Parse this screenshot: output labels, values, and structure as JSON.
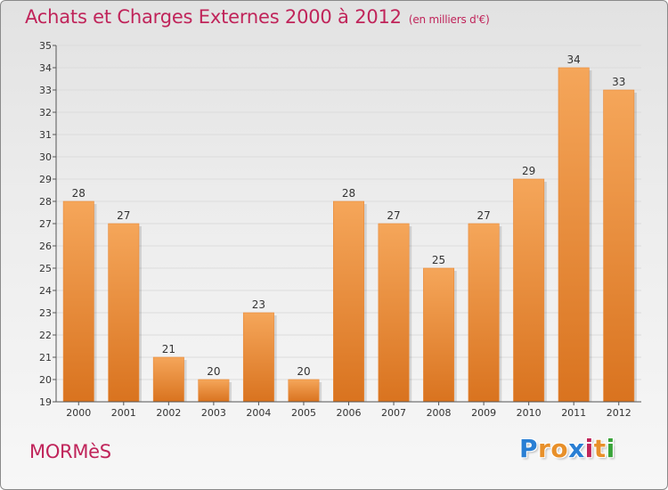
{
  "header": {
    "title": "Achats et Charges Externes 2000 à 2012",
    "subtitle": "(en milliers d'€)"
  },
  "footer": {
    "commune": "MORMèS",
    "brand_letters": [
      "P",
      "r",
      "o",
      "x",
      "i",
      "t",
      "i"
    ],
    "brand_colors": [
      "#2a7fd4",
      "#e8902a",
      "#e8902a",
      "#2a7fd4",
      "#c0245a",
      "#e8902a",
      "#3aa33a"
    ]
  },
  "colors": {
    "bar_light": "#f5a65a",
    "bar_dark": "#d9731f",
    "accent": "#c0245a",
    "axis": "#555555",
    "grid": "#dcdcdc"
  },
  "chart_data": {
    "type": "bar",
    "categories": [
      "2000",
      "2001",
      "2002",
      "2003",
      "2004",
      "2005",
      "2006",
      "2007",
      "2008",
      "2009",
      "2010",
      "2011",
      "2012"
    ],
    "values": [
      28,
      27,
      21,
      20,
      23,
      20,
      28,
      27,
      25,
      27,
      29,
      34,
      33
    ],
    "ylim": [
      19,
      35
    ],
    "yticks": [
      19,
      20,
      21,
      22,
      23,
      24,
      25,
      26,
      27,
      28,
      29,
      30,
      31,
      32,
      33,
      34,
      35
    ],
    "title": "Achats et Charges Externes 2000 à 2012",
    "xlabel": "",
    "ylabel": "",
    "grid": true,
    "data_labels": true
  }
}
